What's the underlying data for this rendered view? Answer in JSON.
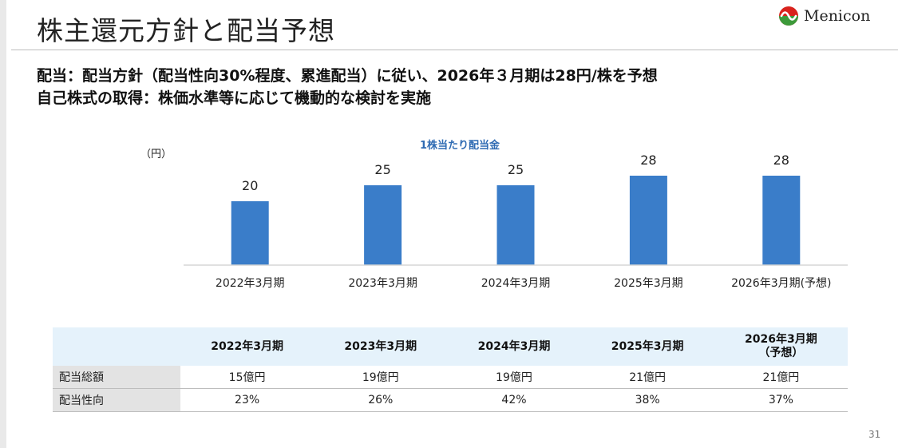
{
  "header": {
    "title": "株主還元方針と配当予想",
    "logo_text": "Menicon"
  },
  "summary": {
    "line1": "配当：配当方針（配当性向30%程度、累進配当）に従い、2026年３月期は28円/株を予想",
    "line2": "自己株式の取得：株価水準等に応じて機動的な検討を実施"
  },
  "chart_data": {
    "type": "bar",
    "title": "1株当たり配当金",
    "ylabel": "（円）",
    "categories": [
      "2022年3月期",
      "2023年3月期",
      "2024年3月期",
      "2025年3月期",
      "2026年3月期(予想)"
    ],
    "values": [
      20,
      25,
      25,
      28,
      28
    ],
    "ylim": [
      0,
      40
    ],
    "grid": false,
    "colors": {
      "bar": "#3a7dc9"
    }
  },
  "table": {
    "corner": "",
    "columns": [
      "2022年3月期",
      "2023年3月期",
      "2024年3月期",
      "2025年3月期",
      "2026年3月期\n（予想）"
    ],
    "rows": [
      {
        "label": "配当総額",
        "values": [
          "15億円",
          "19億円",
          "19億円",
          "21億円",
          "21億円"
        ]
      },
      {
        "label": "配当性向",
        "values": [
          "23%",
          "26%",
          "42%",
          "38%",
          "37%"
        ]
      }
    ]
  },
  "page_number": "31"
}
